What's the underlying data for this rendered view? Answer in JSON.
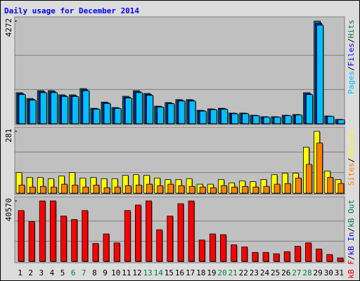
{
  "chart_data": [
    {
      "type": "bar",
      "title": "Daily usage for December 2014",
      "legend_separator": "/",
      "ylim": [
        0,
        4272
      ],
      "yticks": [
        4272
      ],
      "series": [
        {
          "name": "Hits",
          "color": "#008040",
          "values": [
            1290,
            1050,
            1375,
            1375,
            1200,
            1200,
            1460,
            640,
            900,
            670,
            1140,
            1375,
            1260,
            730,
            880,
            1000,
            1000,
            555,
            615,
            640,
            440,
            440,
            350,
            290,
            290,
            350,
            380,
            1290,
            4272,
            320,
            175
          ]
        },
        {
          "name": "Files",
          "color": "#0000ff",
          "values": [
            1250,
            1010,
            1330,
            1330,
            1160,
            1160,
            1410,
            620,
            870,
            650,
            1100,
            1330,
            1220,
            710,
            850,
            970,
            970,
            540,
            600,
            620,
            430,
            430,
            340,
            280,
            280,
            340,
            370,
            1250,
            4180,
            310,
            170
          ]
        },
        {
          "name": "Pages",
          "color": "#00c0ff",
          "values": [
            1210,
            980,
            1290,
            1290,
            1130,
            1130,
            1370,
            600,
            840,
            630,
            1070,
            1290,
            1180,
            690,
            830,
            940,
            940,
            520,
            580,
            600,
            410,
            410,
            330,
            270,
            270,
            330,
            360,
            1210,
            4100,
            300,
            160
          ]
        }
      ]
    },
    {
      "type": "bar",
      "legend_separator": "/",
      "ylim": [
        0,
        281
      ],
      "yticks": [
        281
      ],
      "series": [
        {
          "name": "Visits",
          "color": "#ffff00",
          "values": [
            94,
            72,
            72,
            66,
            78,
            94,
            69,
            72,
            66,
            66,
            81,
            84,
            81,
            69,
            62,
            62,
            66,
            41,
            41,
            62,
            47,
            56,
            53,
            62,
            84,
            91,
            91,
            209,
            281,
            100,
            62
          ]
        },
        {
          "name": "Sites",
          "color": "#ff8000",
          "values": [
            37,
            28,
            31,
            28,
            41,
            37,
            28,
            37,
            25,
            28,
            34,
            37,
            41,
            34,
            41,
            34,
            31,
            28,
            25,
            34,
            28,
            31,
            28,
            31,
            41,
            44,
            69,
            131,
            228,
            72,
            44
          ]
        }
      ]
    },
    {
      "type": "bar",
      "legend_separator": "/",
      "ylim": [
        0,
        40570
      ],
      "yticks": [
        40570
      ],
      "categories": [
        "1",
        "2",
        "3",
        "4",
        "5",
        "6",
        "7",
        "8",
        "9",
        "10",
        "11",
        "12",
        "13",
        "14",
        "15",
        "16",
        "17",
        "18",
        "19",
        "20",
        "21",
        "22",
        "23",
        "24",
        "25",
        "26",
        "27",
        "28",
        "29",
        "30",
        "31"
      ],
      "category_colors": [
        "#000000",
        "#000000",
        "#000000",
        "#000000",
        "#000000",
        "#008040",
        "#008040",
        "#000000",
        "#000000",
        "#000000",
        "#000000",
        "#000000",
        "#008040",
        "#008040",
        "#000000",
        "#000000",
        "#000000",
        "#000000",
        "#000000",
        "#008040",
        "#008040",
        "#000000",
        "#000000",
        "#000000",
        "#000000",
        "#000000",
        "#008040",
        "#008040",
        "#000000",
        "#000000",
        "#000000"
      ],
      "series": [
        {
          "name": "kB Out",
          "color": "#008040",
          "values": [
            null,
            null,
            null,
            null,
            null,
            null,
            null,
            null,
            null,
            null,
            null,
            null,
            null,
            null,
            null,
            null,
            null,
            null,
            null,
            null,
            null,
            null,
            null,
            null,
            null,
            null,
            null,
            null,
            null,
            null,
            null
          ]
        },
        {
          "name": "kB In",
          "color": "#0000ff",
          "values": [
            null,
            null,
            null,
            null,
            null,
            null,
            null,
            null,
            null,
            null,
            null,
            null,
            null,
            null,
            null,
            null,
            null,
            null,
            null,
            null,
            null,
            null,
            null,
            null,
            null,
            null,
            null,
            null,
            null,
            null,
            null
          ]
        },
        {
          "name": "kB F",
          "color": "#ff0000",
          "values": [
            34100,
            26700,
            40570,
            40570,
            30400,
            28100,
            34100,
            12000,
            18400,
            12400,
            34100,
            37800,
            40570,
            21200,
            30400,
            38700,
            40570,
            14300,
            18400,
            17900,
            11100,
            9700,
            6000,
            6000,
            5100,
            6500,
            10100,
            12400,
            8300,
            4600,
            2300
          ]
        }
      ]
    }
  ]
}
